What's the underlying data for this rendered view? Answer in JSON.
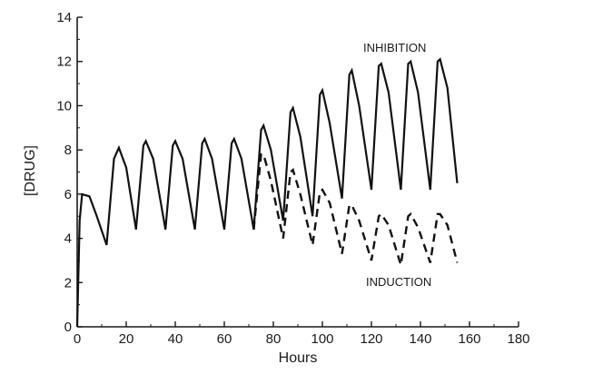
{
  "chart_data": {
    "type": "line",
    "title": "",
    "xlabel": "Hours",
    "ylabel": "[DRUG]",
    "xlim": [
      0,
      180
    ],
    "ylim": [
      0,
      14
    ],
    "xticks": [
      0,
      20,
      40,
      60,
      80,
      100,
      120,
      140,
      160,
      180
    ],
    "yticks": [
      0,
      2,
      4,
      6,
      8,
      10,
      12,
      14
    ],
    "grid": false,
    "legend": "none",
    "annotations": [
      {
        "text": "INHIBITION",
        "series": "inhibition"
      },
      {
        "text": "INDUCTION",
        "series": "induction"
      }
    ],
    "series": [
      {
        "name": "inhibition",
        "style": "solid",
        "x": [
          0,
          1,
          2,
          5,
          8,
          12,
          15,
          17,
          20,
          24,
          27,
          28,
          31,
          36,
          39,
          40,
          43,
          48,
          51,
          52,
          55,
          60,
          63,
          64,
          67,
          72,
          75,
          76,
          79,
          84,
          87,
          88,
          91,
          96,
          99,
          100,
          103,
          108,
          111,
          112,
          115,
          120,
          123,
          124,
          127,
          132,
          135,
          136,
          139,
          144,
          147,
          148,
          151,
          155
        ],
        "y": [
          0,
          4.8,
          6.0,
          5.9,
          5.0,
          3.7,
          7.6,
          8.1,
          7.2,
          4.4,
          8.2,
          8.4,
          7.6,
          4.4,
          8.2,
          8.4,
          7.6,
          4.4,
          8.3,
          8.5,
          7.6,
          4.4,
          8.3,
          8.5,
          7.6,
          4.4,
          8.9,
          9.1,
          8.0,
          4.8,
          9.7,
          9.9,
          8.6,
          5.0,
          10.5,
          10.7,
          9.2,
          5.8,
          11.4,
          11.6,
          10.0,
          6.2,
          11.8,
          11.9,
          10.6,
          6.2,
          11.9,
          12.0,
          10.6,
          6.2,
          12.0,
          12.1,
          10.8,
          6.5
        ]
      },
      {
        "name": "induction",
        "style": "dashed",
        "x": [
          72,
          75,
          76,
          79,
          84,
          87,
          88,
          91,
          96,
          99,
          100,
          103,
          108,
          111,
          112,
          115,
          120,
          123,
          124,
          127,
          132,
          135,
          136,
          139,
          144,
          147,
          148,
          151,
          155
        ],
        "y": [
          4.4,
          7.8,
          7.8,
          6.6,
          4.0,
          7.0,
          7.1,
          6.0,
          3.7,
          6.1,
          6.2,
          5.6,
          3.3,
          5.5,
          5.5,
          4.8,
          3.0,
          5.0,
          5.1,
          4.6,
          2.8,
          5.0,
          5.1,
          4.5,
          2.9,
          5.1,
          5.1,
          4.6,
          2.9
        ]
      }
    ]
  }
}
